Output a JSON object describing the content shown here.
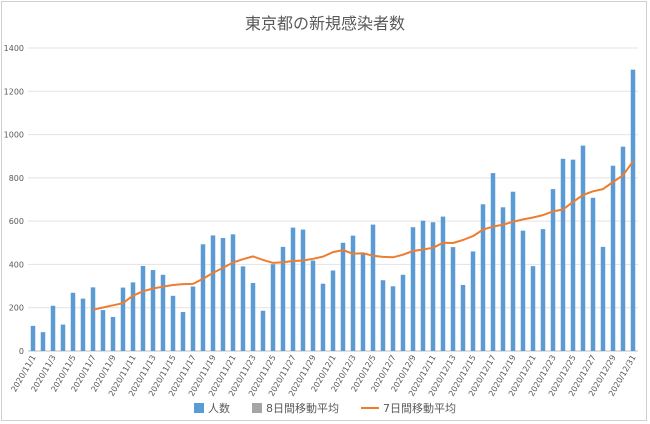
{
  "chart_data": {
    "type": "bar",
    "title": "東京都の新規感染者数",
    "ylim": [
      0,
      1400
    ],
    "yticks": [
      0,
      200,
      400,
      600,
      800,
      1000,
      1200,
      1400
    ],
    "grid": true,
    "legend_position": "bottom",
    "tick_labels": [
      "2020/11/1",
      "2020/11/3",
      "2020/11/5",
      "2020/11/7",
      "2020/11/9",
      "2020/11/11",
      "2020/11/13",
      "2020/11/15",
      "2020/11/17",
      "2020/11/19",
      "2020/11/21",
      "2020/11/23",
      "2020/11/25",
      "2020/11/27",
      "2020/11/29",
      "2020/12/1",
      "2020/12/3",
      "2020/12/5",
      "2020/12/7",
      "2020/12/9",
      "2020/12/11",
      "2020/12/13",
      "2020/12/15",
      "2020/12/17",
      "2020/12/19",
      "2020/12/21",
      "2020/12/23",
      "2020/12/25",
      "2020/12/27",
      "2020/12/29",
      "2020/12/31"
    ],
    "series": [
      {
        "name": "人数",
        "type": "bar",
        "color": "#5b9bd5",
        "values": [
          116,
          87,
          209,
          122,
          269,
          242,
          294,
          189,
          157,
          293,
          317,
          393,
          374,
          352,
          255,
          180,
          298,
          493,
          534,
          522,
          539,
          391,
          314,
          186,
          401,
          481,
          570,
          561,
          418,
          311,
          372,
          500,
          533,
          449,
          584,
          327,
          299,
          352,
          572,
          602,
          595,
          621,
          480,
          305,
          460,
          678,
          822,
          664,
          736,
          556,
          392,
          563,
          748,
          888,
          884,
          949,
          708,
          481,
          856,
          944,
          1300
        ]
      },
      {
        "name": "8日間移動平均",
        "type": "bar",
        "color": "#a5a5a5",
        "values": []
      },
      {
        "name": "7日間移動平均",
        "type": "line",
        "color": "#ed7d31",
        "start_index": 6,
        "values": [
          191,
          201,
          211,
          221,
          256,
          276,
          289,
          297,
          305,
          309,
          310,
          334,
          361,
          384,
          409,
          424,
          437,
          421,
          407,
          410,
          416,
          418,
          426,
          436,
          457,
          466,
          449,
          452,
          440,
          435,
          433,
          445,
          462,
          469,
          477,
          500,
          499,
          513,
          531,
          561,
          575,
          584,
          597,
          608,
          617,
          628,
          645,
          654,
          689,
          721,
          738,
          748,
          781,
          812,
          876
        ]
      }
    ]
  }
}
